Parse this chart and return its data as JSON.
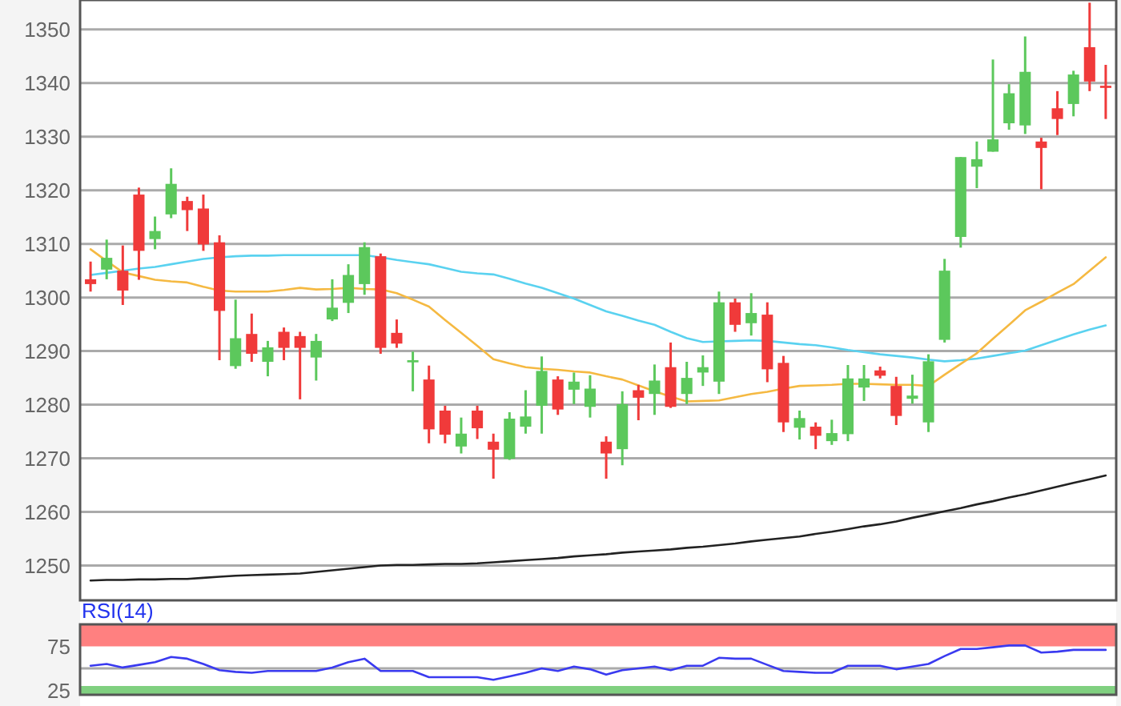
{
  "chart_data": [
    {
      "type": "candlestick",
      "categories": [
        null,
        null,
        null,
        null,
        null,
        null,
        null,
        null,
        null,
        null,
        null,
        null,
        null,
        null,
        null,
        null,
        null,
        null,
        null,
        null,
        null,
        null,
        null,
        null,
        null,
        null,
        null,
        null,
        null,
        null,
        null,
        null,
        null,
        null,
        null,
        null,
        null,
        null,
        null,
        null,
        null,
        null,
        null,
        null,
        null,
        null,
        null,
        null,
        null,
        null,
        null,
        null,
        null,
        null,
        null,
        null,
        null,
        null,
        null,
        null,
        null,
        null,
        null,
        null
      ],
      "ohlc": [
        [
          1303.4,
          1306.7,
          1301.1,
          1302.5
        ],
        [
          1305.2,
          1310.8,
          1303.4,
          1307.4
        ],
        [
          1305.0,
          1309.7,
          1298.6,
          1301.3
        ],
        [
          1319.2,
          1320.5,
          1303.3,
          1308.7
        ],
        [
          1310.9,
          1315.1,
          1309.0,
          1312.4
        ],
        [
          1315.5,
          1324.1,
          1314.8,
          1321.2
        ],
        [
          1318.0,
          1318.8,
          1312.4,
          1316.3
        ],
        [
          1316.6,
          1319.2,
          1308.7,
          1309.9
        ],
        [
          1310.3,
          1311.6,
          1288.3,
          1297.5
        ],
        [
          1287.2,
          1299.6,
          1286.7,
          1292.4
        ],
        [
          1293.2,
          1297.0,
          1288.0,
          1289.5
        ],
        [
          1288.0,
          1291.9,
          1285.3,
          1290.7
        ],
        [
          1293.6,
          1294.4,
          1288.3,
          1290.6
        ],
        [
          1292.8,
          1293.6,
          1281.0,
          1290.6
        ],
        [
          1288.8,
          1293.2,
          1284.5,
          1291.9
        ],
        [
          1295.9,
          1303.4,
          1295.6,
          1298.1
        ],
        [
          1299.0,
          1306.2,
          1297.1,
          1304.2
        ],
        [
          1302.5,
          1310.3,
          1300.5,
          1309.4
        ],
        [
          1307.7,
          1308.2,
          1289.5,
          1290.6
        ],
        [
          1293.4,
          1295.9,
          1290.6,
          1291.4
        ],
        [
          1287.9,
          1289.9,
          1282.5,
          1288.3
        ],
        [
          1284.7,
          1287.3,
          1272.8,
          1275.4
        ],
        [
          1278.9,
          1279.8,
          1272.8,
          1274.4
        ],
        [
          1272.2,
          1277.6,
          1270.9,
          1274.6
        ],
        [
          1278.9,
          1279.8,
          1273.6,
          1275.6
        ],
        [
          1273.1,
          1274.6,
          1266.2,
          1271.6
        ],
        [
          1269.9,
          1278.6,
          1269.7,
          1277.4
        ],
        [
          1275.9,
          1282.7,
          1274.6,
          1277.8
        ],
        [
          1279.8,
          1289.0,
          1274.6,
          1286.3
        ],
        [
          1284.7,
          1285.3,
          1278.1,
          1279.1
        ],
        [
          1282.8,
          1286.0,
          1280.1,
          1284.3
        ],
        [
          1279.6,
          1285.5,
          1277.6,
          1283.0
        ],
        [
          1273.1,
          1274.1,
          1266.2,
          1270.9
        ],
        [
          1271.7,
          1282.5,
          1268.7,
          1280.1
        ],
        [
          1282.7,
          1283.7,
          1277.1,
          1281.3
        ],
        [
          1282.0,
          1287.5,
          1278.1,
          1284.5
        ],
        [
          1287.0,
          1291.6,
          1279.4,
          1279.6
        ],
        [
          1282.0,
          1288.0,
          1280.1,
          1285.0
        ],
        [
          1286.0,
          1289.2,
          1283.5,
          1287.0
        ],
        [
          1284.3,
          1301.1,
          1282.0,
          1299.1
        ],
        [
          1299.1,
          1299.8,
          1293.6,
          1294.9
        ],
        [
          1295.2,
          1300.8,
          1292.9,
          1297.1
        ],
        [
          1296.8,
          1299.1,
          1284.2,
          1286.6
        ],
        [
          1287.8,
          1289.1,
          1274.9,
          1276.7
        ],
        [
          1275.7,
          1278.9,
          1273.5,
          1277.5
        ],
        [
          1275.9,
          1276.7,
          1271.7,
          1274.2
        ],
        [
          1273.2,
          1277.2,
          1272.5,
          1274.7
        ],
        [
          1274.5,
          1287.4,
          1273.2,
          1284.9
        ],
        [
          1283.2,
          1287.4,
          1280.7,
          1284.9
        ],
        [
          1286.4,
          1287.1,
          1284.9,
          1285.4
        ],
        [
          1283.5,
          1285.2,
          1276.2,
          1277.9
        ],
        [
          1281.1,
          1285.6,
          1280.2,
          1281.7
        ],
        [
          1276.7,
          1289.4,
          1274.9,
          1288.1
        ],
        [
          1292.1,
          1307.2,
          1291.6,
          1305.0
        ],
        [
          1311.3,
          1326.2,
          1309.3,
          1326.2
        ],
        [
          1324.4,
          1329.1,
          1320.4,
          1325.8
        ],
        [
          1327.2,
          1344.4,
          1327.2,
          1329.5
        ],
        [
          1332.5,
          1339.8,
          1331.3,
          1338.1
        ],
        [
          1332.1,
          1348.7,
          1330.5,
          1342.1
        ],
        [
          1329.1,
          1329.8,
          1320.2,
          1327.9
        ],
        [
          1335.3,
          1338.5,
          1330.3,
          1333.3
        ],
        [
          1336.1,
          1342.3,
          1333.8,
          1341.6
        ],
        [
          1346.7,
          1355.0,
          1338.5,
          1340.3
        ],
        [
          1339.5,
          1343.4,
          1333.3,
          1339.1
        ]
      ],
      "colors": [
        "#f03a3a",
        "#5cc85c",
        "#f03a3a",
        "#f03a3a",
        "#5cc85c",
        "#5cc85c",
        "#f03a3a",
        "#f03a3a",
        "#f03a3a",
        "#5cc85c",
        "#f03a3a",
        "#5cc85c",
        "#f03a3a",
        "#f03a3a",
        "#5cc85c",
        "#5cc85c",
        "#5cc85c",
        "#5cc85c",
        "#f03a3a",
        "#f03a3a",
        "#5cc85c",
        "#f03a3a",
        "#f03a3a",
        "#5cc85c",
        "#f03a3a",
        "#f03a3a",
        "#5cc85c",
        "#5cc85c",
        "#5cc85c",
        "#f03a3a",
        "#5cc85c",
        "#5cc85c",
        "#f03a3a",
        "#5cc85c",
        "#f03a3a",
        "#5cc85c",
        "#f03a3a",
        "#5cc85c",
        "#5cc85c",
        "#5cc85c",
        "#f03a3a",
        "#5cc85c",
        "#f03a3a",
        "#f03a3a",
        "#5cc85c",
        "#f03a3a",
        "#5cc85c",
        "#5cc85c",
        "#5cc85c",
        "#f03a3a",
        "#f03a3a",
        "#5cc85c",
        "#5cc85c",
        "#5cc85c",
        "#5cc85c",
        "#5cc85c",
        "#5cc85c",
        "#5cc85c",
        "#5cc85c",
        "#f03a3a",
        "#f03a3a",
        "#5cc85c",
        "#f03a3a",
        "#f03a3a"
      ],
      "series": [
        {
          "type": "line",
          "color": "#222222",
          "values": [
            1247.2,
            1247.3,
            1247.3,
            1247.4,
            1247.4,
            1247.5,
            1247.5,
            1247.7,
            1247.9,
            1248.1,
            1248.2,
            1248.3,
            1248.4,
            1248.5,
            1248.8,
            1249.1,
            1249.4,
            1249.7,
            1250.0,
            1250.1,
            1250.1,
            1250.2,
            1250.3,
            1250.3,
            1250.4,
            1250.6,
            1250.8,
            1251.0,
            1251.2,
            1251.4,
            1251.7,
            1251.9,
            1252.1,
            1252.4,
            1252.6,
            1252.8,
            1253.0,
            1253.3,
            1253.5,
            1253.8,
            1254.1,
            1254.5,
            1254.8,
            1255.1,
            1255.4,
            1255.9,
            1256.3,
            1256.8,
            1257.3,
            1257.7,
            1258.2,
            1258.9,
            1259.5,
            1260.1,
            1260.7,
            1261.4,
            1262.0,
            1262.7,
            1263.3,
            1264.0,
            1264.7,
            1265.4,
            1266.1,
            1266.8
          ]
        },
        {
          "type": "line",
          "color": "#5ad2f0",
          "values": [
            1304.2,
            1304.6,
            1305.0,
            1305.4,
            1305.7,
            1306.2,
            1306.7,
            1307.2,
            1307.5,
            1307.7,
            1307.8,
            1307.8,
            1307.9,
            1307.9,
            1307.9,
            1307.9,
            1307.9,
            1307.9,
            1307.5,
            1307.0,
            1306.6,
            1306.2,
            1305.5,
            1304.8,
            1304.5,
            1304.3,
            1303.5,
            1302.6,
            1301.8,
            1300.8,
            1299.8,
            1298.6,
            1297.4,
            1296.6,
            1295.7,
            1294.9,
            1293.6,
            1292.4,
            1291.7,
            1291.8,
            1291.9,
            1292.0,
            1291.9,
            1291.6,
            1291.3,
            1291.1,
            1290.7,
            1290.2,
            1289.8,
            1289.4,
            1289.1,
            1288.8,
            1288.4,
            1288.1,
            1288.3,
            1288.6,
            1289.1,
            1289.6,
            1290.1,
            1291.1,
            1292.1,
            1293.1,
            1294.0,
            1294.8
          ]
        },
        {
          "type": "line",
          "color": "#f5b942",
          "values": [
            1309.0,
            1306.8,
            1304.7,
            1304.0,
            1303.3,
            1303.0,
            1302.8,
            1302.0,
            1301.3,
            1301.1,
            1301.1,
            1301.1,
            1301.4,
            1301.8,
            1301.5,
            1301.6,
            1301.8,
            1301.6,
            1301.5,
            1300.8,
            1299.6,
            1298.3,
            1295.8,
            1293.4,
            1291.0,
            1288.5,
            1287.7,
            1287.0,
            1286.7,
            1286.5,
            1286.2,
            1286.0,
            1285.3,
            1284.7,
            1283.6,
            1282.5,
            1281.5,
            1280.6,
            1280.7,
            1280.8,
            1281.4,
            1282.0,
            1282.4,
            1283.0,
            1283.5,
            1283.6,
            1283.7,
            1283.9,
            1283.9,
            1283.8,
            1283.7,
            1283.7,
            1283.5,
            1285.6,
            1287.6,
            1289.6,
            1292.3,
            1294.9,
            1297.6,
            1299.2,
            1300.9,
            1302.5,
            1305.0,
            1307.5
          ]
        }
      ],
      "ylim": [
        1243.5,
        1355.5
      ],
      "yticks": [
        1250,
        1260,
        1270,
        1280,
        1290,
        1300,
        1310,
        1320,
        1330,
        1340,
        1350
      ],
      "grid": "y",
      "tick_labels": "y"
    },
    {
      "type": "line",
      "title": "RSI(14)",
      "categories": [
        null,
        null,
        null,
        null,
        null,
        null,
        null,
        null,
        null,
        null,
        null,
        null,
        null,
        null,
        null,
        null,
        null,
        null,
        null,
        null,
        null,
        null,
        null,
        null,
        null,
        null,
        null,
        null,
        null,
        null,
        null,
        null,
        null,
        null,
        null,
        null,
        null,
        null,
        null,
        null,
        null,
        null,
        null,
        null,
        null,
        null,
        null,
        null,
        null,
        null,
        null,
        null,
        null,
        null,
        null,
        null,
        null,
        null,
        null,
        null,
        null,
        null,
        null,
        null
      ],
      "series": [
        {
          "color": "#3a3af0",
          "values": [
            53,
            55,
            51,
            54,
            57,
            63,
            61,
            55,
            48,
            46,
            45,
            47,
            47,
            47,
            47,
            51,
            57,
            61,
            47,
            47,
            47,
            40,
            40,
            40,
            40,
            37,
            41,
            45,
            50,
            47,
            52,
            49,
            43,
            48,
            50,
            52,
            48,
            53,
            53,
            62,
            61,
            61,
            54,
            47,
            46,
            45,
            45,
            53,
            53,
            53,
            49,
            52,
            55,
            64,
            72,
            72,
            74,
            76,
            76,
            68,
            69,
            71,
            71,
            71
          ]
        }
      ],
      "ylim": [
        20,
        100
      ],
      "yticks": [
        25,
        75
      ],
      "bands": [
        {
          "axis": "y",
          "from": 75,
          "to": 100,
          "color": "#ff8080"
        },
        {
          "axis": "y",
          "from": 20,
          "to": 30,
          "color": "#80d080"
        }
      ],
      "ref_lines": [
        {
          "axis": "y",
          "value": 50,
          "color": "#aaaaaa"
        }
      ],
      "tick_labels": "y"
    }
  ]
}
